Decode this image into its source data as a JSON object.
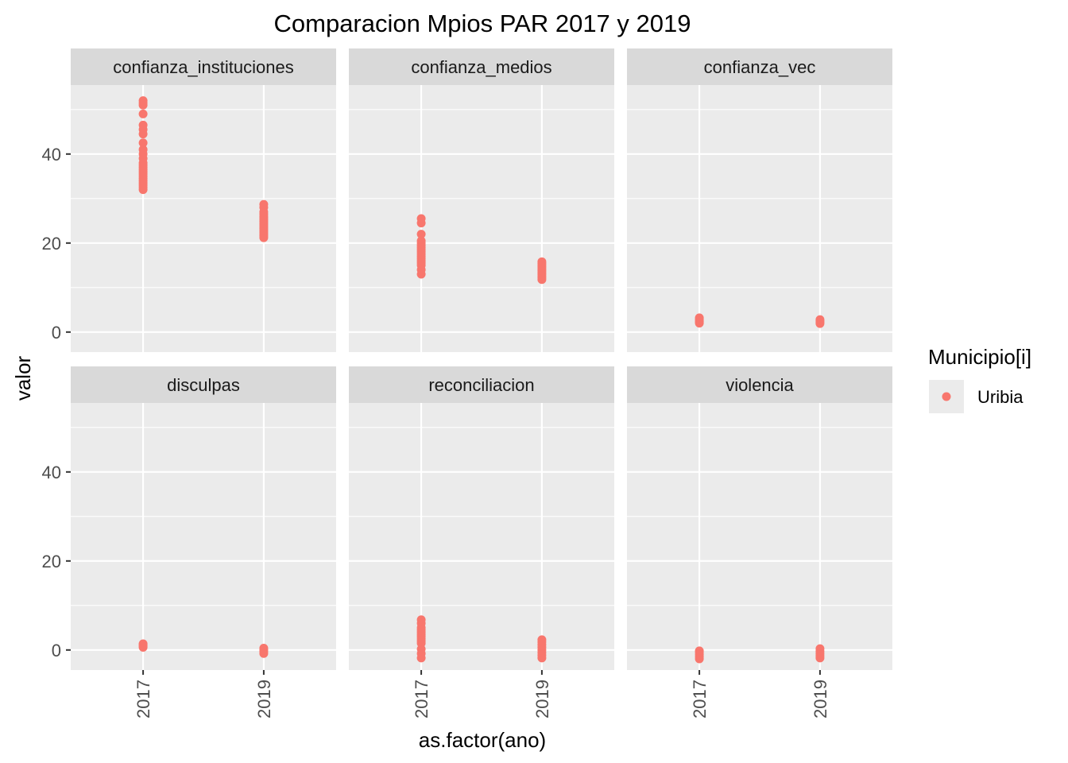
{
  "chart_data": {
    "type": "scatter",
    "title": "Comparacion Mpios PAR 2017 y 2019",
    "xlabel": "as.factor(ano)",
    "ylabel": "valor",
    "categories": [
      "2017",
      "2019"
    ],
    "y_ticks": [
      0,
      20,
      40
    ],
    "ylim": [
      -4.5,
      55.5
    ],
    "grid": true,
    "facet_layout": "2 rows x 3 columns",
    "legend": {
      "title": "Municipio[i]",
      "position": "right",
      "entries": [
        {
          "label": "Uribia",
          "color": "#F8766D"
        }
      ]
    },
    "colors": {
      "point": "#F8766D",
      "panel_bg": "#EBEBEB",
      "strip_bg": "#D9D9D9",
      "grid": "#FFFFFF"
    },
    "facets": [
      {
        "name": "confianza_instituciones",
        "points": {
          "2017": [
            32,
            32.5,
            33,
            33.5,
            34,
            34.5,
            35,
            35.5,
            36,
            36.5,
            37,
            37.5,
            38,
            39,
            40,
            41,
            42.5,
            44.5,
            45.5,
            46.5,
            49,
            51,
            51.5,
            52
          ],
          "2019": [
            21.2,
            21.6,
            22,
            22.4,
            22.8,
            23.2,
            23.6,
            24,
            24.4,
            24.8,
            25.2,
            25.6,
            26,
            26.5,
            27,
            28,
            28.7
          ]
        }
      },
      {
        "name": "confianza_medios",
        "points": {
          "2017": [
            13,
            14,
            15,
            15.5,
            16,
            16.5,
            17,
            17.5,
            18,
            18.5,
            19,
            19.5,
            20,
            20.5,
            22,
            24.5,
            25.5
          ],
          "2019": [
            11.8,
            12.2,
            12.6,
            13,
            13.4,
            13.8,
            14.2,
            14.6,
            15,
            15.4,
            15.8
          ]
        }
      },
      {
        "name": "confianza_vec",
        "points": {
          "2017": [
            2,
            2.3,
            2.6,
            2.9,
            3.2
          ],
          "2019": [
            1.9,
            2.2,
            2.5,
            2.8
          ]
        }
      },
      {
        "name": "disculpas",
        "points": {
          "2017": [
            0.6,
            0.9,
            1.2,
            1.4
          ],
          "2019": [
            -0.8,
            -0.4,
            0,
            0.4
          ]
        }
      },
      {
        "name": "reconciliacion",
        "points": {
          "2017": [
            -1.8,
            -0.8,
            0.2,
            1.5,
            2,
            2.5,
            3,
            3.5,
            4,
            4.5,
            5,
            6,
            6.8
          ],
          "2019": [
            -1.8,
            -1.2,
            -0.6,
            0,
            0.6,
            1.2,
            1.8,
            2.3
          ]
        }
      },
      {
        "name": "violencia",
        "points": {
          "2017": [
            -2,
            -1.5,
            -1,
            -0.5,
            -0.2
          ],
          "2019": [
            -1.8,
            -1.3,
            -0.8,
            -0.3,
            0.3
          ]
        }
      }
    ]
  }
}
